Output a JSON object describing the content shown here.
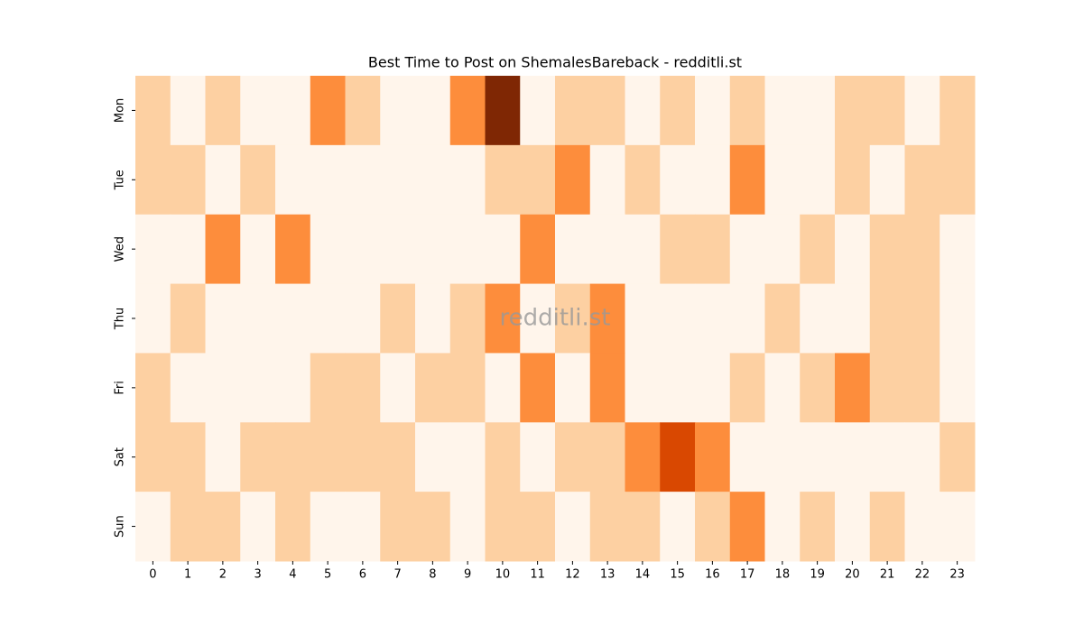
{
  "chart_data": {
    "type": "heatmap",
    "title": "Best Time to Post on ShemalesBareback - redditli.st",
    "watermark": "redditli.st",
    "x": [
      0,
      1,
      2,
      3,
      4,
      5,
      6,
      7,
      8,
      9,
      10,
      11,
      12,
      13,
      14,
      15,
      16,
      17,
      18,
      19,
      20,
      21,
      22,
      23
    ],
    "y": [
      "Mon",
      "Tue",
      "Wed",
      "Thu",
      "Fri",
      "Sat",
      "Sun"
    ],
    "values": [
      [
        1,
        0,
        1,
        0,
        0,
        2,
        1,
        0,
        0,
        2,
        4,
        0,
        1,
        1,
        0,
        1,
        0,
        1,
        0,
        0,
        1,
        1,
        0,
        1
      ],
      [
        1,
        1,
        0,
        1,
        0,
        0,
        0,
        0,
        0,
        0,
        1,
        1,
        2,
        0,
        1,
        0,
        0,
        2,
        0,
        0,
        1,
        0,
        1,
        1
      ],
      [
        0,
        0,
        2,
        0,
        2,
        0,
        0,
        0,
        0,
        0,
        0,
        2,
        0,
        0,
        0,
        1,
        1,
        0,
        0,
        1,
        0,
        1,
        1,
        0
      ],
      [
        0,
        1,
        0,
        0,
        0,
        0,
        0,
        1,
        0,
        1,
        2,
        0,
        1,
        2,
        0,
        0,
        0,
        0,
        1,
        0,
        0,
        1,
        1,
        0
      ],
      [
        1,
        0,
        0,
        0,
        0,
        1,
        1,
        0,
        1,
        1,
        0,
        2,
        0,
        2,
        0,
        0,
        0,
        1,
        0,
        1,
        2,
        1,
        1,
        0
      ],
      [
        1,
        1,
        0,
        1,
        1,
        1,
        1,
        1,
        0,
        0,
        1,
        0,
        1,
        1,
        2,
        3,
        2,
        0,
        0,
        0,
        0,
        0,
        0,
        1
      ],
      [
        0,
        1,
        1,
        0,
        1,
        0,
        0,
        1,
        1,
        0,
        1,
        1,
        0,
        1,
        1,
        0,
        1,
        2,
        0,
        1,
        0,
        1,
        0,
        0
      ]
    ],
    "vmin": 0,
    "vmax": 4,
    "colormap": [
      "#fff5eb",
      "#fdd0a2",
      "#fd8d3c",
      "#d94801",
      "#7f2704"
    ]
  }
}
